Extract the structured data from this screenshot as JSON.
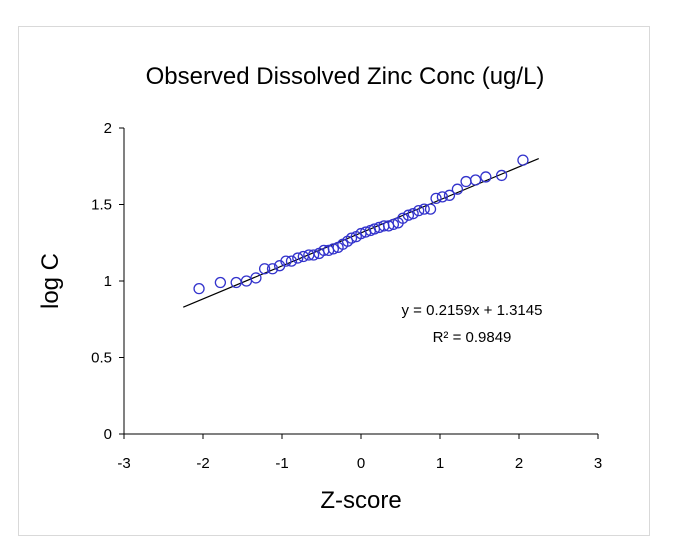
{
  "chart_data": {
    "type": "scatter",
    "title": "Observed Dissolved Zinc Conc (ug/L)",
    "xlabel": "Z-score",
    "ylabel": "log C",
    "xlim": [
      -3,
      3
    ],
    "ylim": [
      0,
      2
    ],
    "x_ticks": [
      "-3",
      "-2",
      "-1",
      "0",
      "1",
      "2",
      "3"
    ],
    "y_ticks": [
      "0",
      "0.5",
      "1",
      "1.5",
      "2"
    ],
    "grid": false,
    "legend": "none",
    "marker_color": "#3333cc",
    "trendline": {
      "slope": 0.2159,
      "intercept": 1.3145,
      "x_range": [
        -2.25,
        2.25
      ],
      "equation": "y = 0.2159x + 1.3145",
      "r_squared": "R² = 0.9849",
      "color": "#000000"
    },
    "points": [
      {
        "x": -2.05,
        "y": 0.95
      },
      {
        "x": -1.78,
        "y": 0.99
      },
      {
        "x": -1.58,
        "y": 0.99
      },
      {
        "x": -1.45,
        "y": 1.0
      },
      {
        "x": -1.33,
        "y": 1.02
      },
      {
        "x": -1.22,
        "y": 1.08
      },
      {
        "x": -1.12,
        "y": 1.08
      },
      {
        "x": -1.03,
        "y": 1.1
      },
      {
        "x": -0.95,
        "y": 1.13
      },
      {
        "x": -0.88,
        "y": 1.13
      },
      {
        "x": -0.8,
        "y": 1.15
      },
      {
        "x": -0.73,
        "y": 1.16
      },
      {
        "x": -0.66,
        "y": 1.17
      },
      {
        "x": -0.6,
        "y": 1.17
      },
      {
        "x": -0.53,
        "y": 1.18
      },
      {
        "x": -0.47,
        "y": 1.2
      },
      {
        "x": -0.41,
        "y": 1.2
      },
      {
        "x": -0.35,
        "y": 1.21
      },
      {
        "x": -0.29,
        "y": 1.22
      },
      {
        "x": -0.23,
        "y": 1.24
      },
      {
        "x": -0.17,
        "y": 1.26
      },
      {
        "x": -0.12,
        "y": 1.28
      },
      {
        "x": -0.06,
        "y": 1.29
      },
      {
        "x": 0.0,
        "y": 1.31
      },
      {
        "x": 0.06,
        "y": 1.32
      },
      {
        "x": 0.12,
        "y": 1.33
      },
      {
        "x": 0.17,
        "y": 1.34
      },
      {
        "x": 0.23,
        "y": 1.35
      },
      {
        "x": 0.29,
        "y": 1.36
      },
      {
        "x": 0.35,
        "y": 1.36
      },
      {
        "x": 0.41,
        "y": 1.37
      },
      {
        "x": 0.47,
        "y": 1.38
      },
      {
        "x": 0.53,
        "y": 1.41
      },
      {
        "x": 0.6,
        "y": 1.43
      },
      {
        "x": 0.66,
        "y": 1.44
      },
      {
        "x": 0.73,
        "y": 1.46
      },
      {
        "x": 0.8,
        "y": 1.47
      },
      {
        "x": 0.88,
        "y": 1.47
      },
      {
        "x": 0.95,
        "y": 1.54
      },
      {
        "x": 1.03,
        "y": 1.55
      },
      {
        "x": 1.12,
        "y": 1.56
      },
      {
        "x": 1.22,
        "y": 1.6
      },
      {
        "x": 1.33,
        "y": 1.65
      },
      {
        "x": 1.45,
        "y": 1.66
      },
      {
        "x": 1.58,
        "y": 1.68
      },
      {
        "x": 1.78,
        "y": 1.69
      },
      {
        "x": 2.05,
        "y": 1.79
      }
    ]
  }
}
